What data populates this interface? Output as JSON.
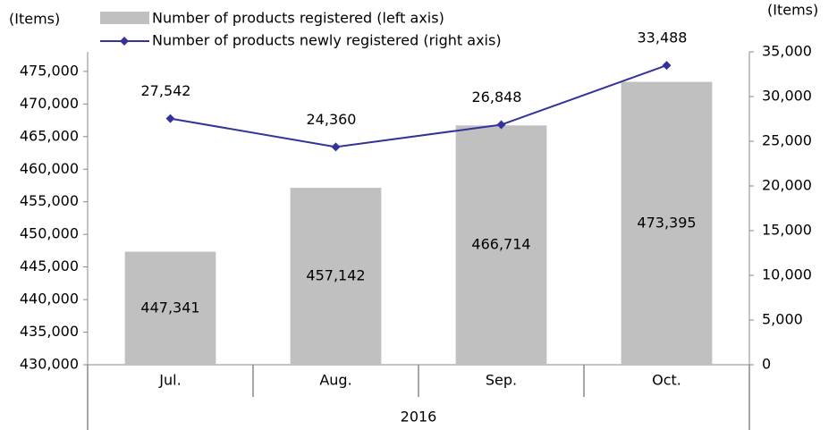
{
  "chart_data": {
    "type": "bar_line",
    "y_label": "(Items)",
    "y2_label": "(Items)",
    "categories": [
      "Jul.",
      "Aug.",
      "Sep.",
      "Oct."
    ],
    "group": "2016",
    "series": [
      {
        "name": "Number of products registered (left axis)",
        "type": "bar",
        "color": "#c0c0c0",
        "values": [
          447341,
          457142,
          466714,
          473395
        ],
        "value_labels": [
          "447,341",
          "457,142",
          "466,714",
          "473,395"
        ]
      },
      {
        "name": "Number of products newly registered (right axis)",
        "type": "line",
        "axis": "y2",
        "color": "#333399",
        "values": [
          27542,
          24360,
          26848,
          33488
        ],
        "value_labels": [
          "27,542",
          "24,360",
          "26,848",
          "33,488"
        ]
      }
    ],
    "ylim": [
      430000,
      478000
    ],
    "yticks": [
      {
        "value": 430000,
        "label": "430,000"
      },
      {
        "value": 435000,
        "label": "435,000"
      },
      {
        "value": 440000,
        "label": "440,000"
      },
      {
        "value": 445000,
        "label": "445,000"
      },
      {
        "value": 450000,
        "label": "450,000"
      },
      {
        "value": 455000,
        "label": "455,000"
      },
      {
        "value": 460000,
        "label": "460,000"
      },
      {
        "value": 465000,
        "label": "465,000"
      },
      {
        "value": 470000,
        "label": "470,000"
      },
      {
        "value": 475000,
        "label": "475,000"
      }
    ],
    "y2lim": [
      0,
      35000
    ],
    "y2ticks": [
      0,
      {
        "value": 5000,
        "label": "5,000"
      },
      {
        "value": 10000,
        "label": "10,000"
      },
      {
        "value": 15000,
        "label": "15,000"
      },
      {
        "value": 20000,
        "label": "20,000"
      },
      {
        "value": 25000,
        "label": "25,000"
      },
      {
        "value": 30000,
        "label": "30,000"
      },
      {
        "value": 35000,
        "label": "35,000"
      }
    ]
  }
}
